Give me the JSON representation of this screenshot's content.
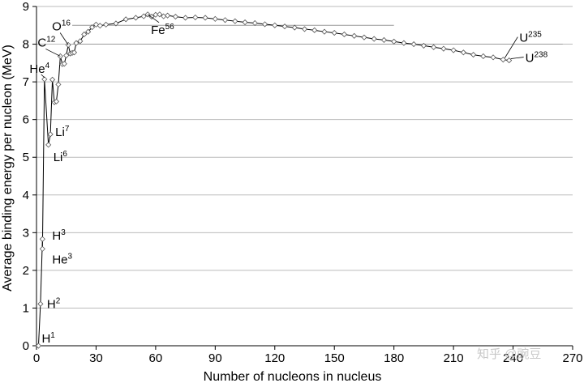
{
  "chart_data": {
    "type": "line",
    "xlabel": "Number of nucleons in nucleus",
    "ylabel": "Average binding energy per nucleon (MeV)",
    "xlim": [
      0,
      270
    ],
    "ylim": [
      0,
      9
    ],
    "xticks": [
      0,
      30,
      60,
      90,
      120,
      150,
      180,
      210,
      240,
      270
    ],
    "yticks": [
      0,
      1,
      2,
      3,
      4,
      5,
      6,
      7,
      8,
      9
    ],
    "grid": "horizontal",
    "reference_lines": [
      {
        "y": 8.5,
        "x_start": 18,
        "x_end": 180
      },
      {
        "y": 8.0,
        "x_start": 18,
        "x_end": 265
      }
    ],
    "series": [
      {
        "x": [
          1,
          2,
          3,
          3,
          4,
          6,
          7,
          8,
          9,
          10,
          11,
          12,
          13,
          14,
          15,
          16,
          17,
          18,
          19,
          20,
          22,
          24,
          26,
          28,
          30,
          32,
          35,
          40,
          45,
          50,
          54,
          56,
          58,
          60,
          62,
          64,
          66,
          70,
          75,
          80,
          85,
          90,
          95,
          100,
          105,
          110,
          115,
          120,
          125,
          130,
          135,
          140,
          145,
          150,
          155,
          160,
          165,
          170,
          175,
          180,
          185,
          190,
          195,
          200,
          205,
          210,
          215,
          220,
          225,
          230,
          235,
          238
        ],
        "y": [
          0,
          1.11,
          2.83,
          2.57,
          7.07,
          5.33,
          5.61,
          7.06,
          6.46,
          6.48,
          6.93,
          7.68,
          7.47,
          7.48,
          7.7,
          7.98,
          7.75,
          7.77,
          7.78,
          8.03,
          8.08,
          8.26,
          8.33,
          8.45,
          8.52,
          8.49,
          8.52,
          8.55,
          8.66,
          8.7,
          8.74,
          8.79,
          8.73,
          8.78,
          8.79,
          8.74,
          8.76,
          8.73,
          8.7,
          8.71,
          8.7,
          8.67,
          8.64,
          8.61,
          8.58,
          8.56,
          8.53,
          8.5,
          8.47,
          8.44,
          8.4,
          8.37,
          8.33,
          8.3,
          8.26,
          8.22,
          8.18,
          8.14,
          8.11,
          8.07,
          8.03,
          8.0,
          7.96,
          7.92,
          7.88,
          7.84,
          7.78,
          7.72,
          7.68,
          7.65,
          7.59,
          7.57
        ]
      }
    ],
    "annotations": [
      {
        "base": "H",
        "sup": "1",
        "x": 1,
        "y": 0
      },
      {
        "base": "H",
        "sup": "2",
        "x": 2,
        "y": 1.11
      },
      {
        "base": "H",
        "sup": "3",
        "x": 3,
        "y": 2.83
      },
      {
        "base": "He",
        "sup": "3",
        "x": 3,
        "y": 2.57
      },
      {
        "base": "He",
        "sup": "4",
        "x": 4,
        "y": 7.07
      },
      {
        "base": "Li",
        "sup": "7",
        "x": 7,
        "y": 5.61
      },
      {
        "base": "Li",
        "sup": "6",
        "x": 6,
        "y": 5.33
      },
      {
        "base": "C",
        "sup": "12",
        "x": 12,
        "y": 7.68
      },
      {
        "base": "O",
        "sup": "16",
        "x": 16,
        "y": 7.98
      },
      {
        "base": "Fe",
        "sup": "56",
        "x": 56,
        "y": 8.79
      },
      {
        "base": "U",
        "sup": "235",
        "x": 235,
        "y": 7.59
      },
      {
        "base": "U",
        "sup": "238",
        "x": 238,
        "y": 7.57
      }
    ]
  },
  "watermark": "知乎 @豌豆",
  "colors": {
    "line": "#000000",
    "marker_fill": "#ffffff",
    "grid": "#bbbbbb",
    "axis": "#000000"
  }
}
